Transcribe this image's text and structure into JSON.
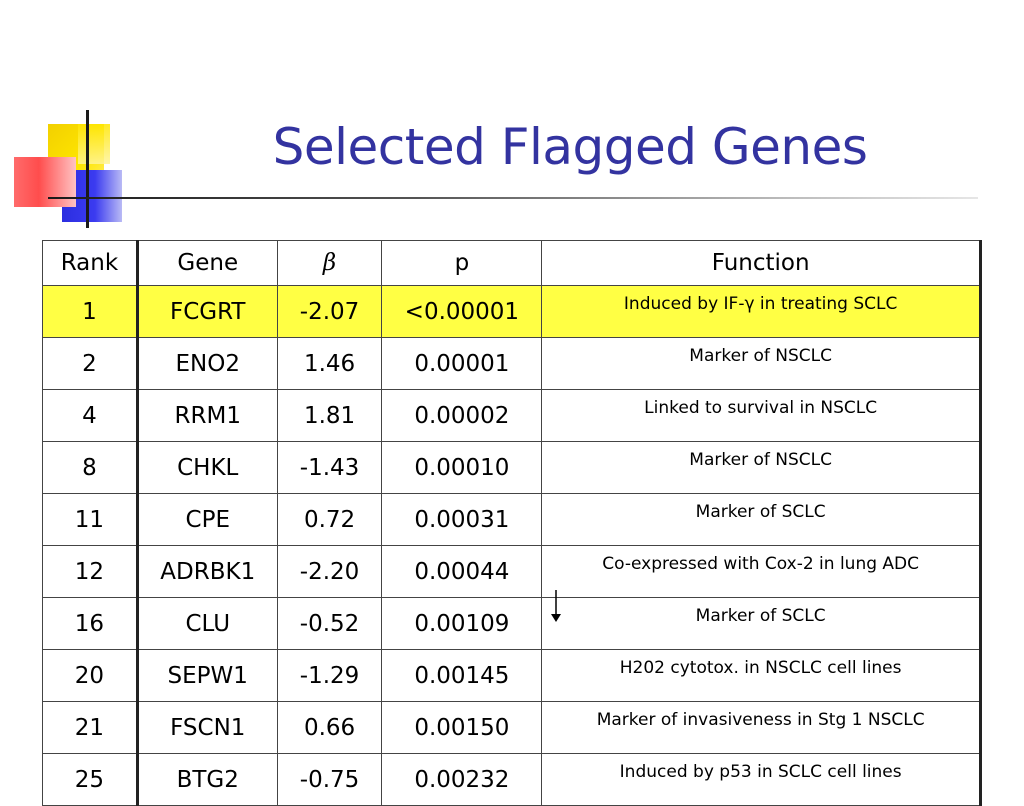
{
  "title": "Selected Flagged Genes",
  "table": {
    "headers": [
      "Rank",
      "Gene",
      "β",
      "p",
      "Function"
    ],
    "rows": [
      {
        "rank": "1",
        "gene": "FCGRT",
        "beta": "-2.07",
        "p": "<0.00001",
        "function": "Induced by IF-γ in treating SCLC",
        "highlight": true
      },
      {
        "rank": "2",
        "gene": "ENO2",
        "beta": "1.46",
        "p": "0.00001",
        "function": "Marker of NSCLC"
      },
      {
        "rank": "4",
        "gene": "RRM1",
        "beta": "1.81",
        "p": "0.00002",
        "function": "Linked to survival in NSCLC"
      },
      {
        "rank": "8",
        "gene": "CHKL",
        "beta": "-1.43",
        "p": "0.00010",
        "function": "Marker of NSCLC"
      },
      {
        "rank": "11",
        "gene": "CPE",
        "beta": "0.72",
        "p": "0.00031",
        "function": "Marker of SCLC"
      },
      {
        "rank": "12",
        "gene": "ADRBK1",
        "beta": "-2.20",
        "p": "0.00044",
        "function": "Co-expressed with Cox-2 in lung ADC"
      },
      {
        "rank": "16",
        "gene": "CLU",
        "beta": "-0.52",
        "p": "0.00109",
        "function": "Marker of SCLC"
      },
      {
        "rank": "20",
        "gene": "SEPW1",
        "beta": "-1.29",
        "p": "0.00145",
        "function": "H202 cytotox. in NSCLC cell lines"
      },
      {
        "rank": "21",
        "gene": "FSCN1",
        "beta": "0.66",
        "p": "0.00150",
        "function": "Marker of invasiveness in Stg 1 NSCLC"
      },
      {
        "rank": "25",
        "gene": "BTG2",
        "beta": "-0.75",
        "p": "0.00232",
        "function": "Induced by p53 in SCLC cell lines"
      }
    ]
  },
  "colors": {
    "title": "#3333a0",
    "highlight_row": "#ffff44"
  }
}
